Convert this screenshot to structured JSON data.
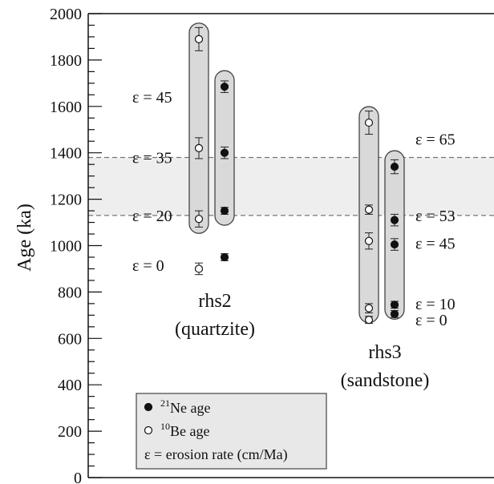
{
  "chart_data": {
    "type": "scatter",
    "ylabel": "Age (ka)",
    "ylim": [
      0,
      2000
    ],
    "yticks": [
      0,
      200,
      400,
      600,
      800,
      1000,
      1200,
      1400,
      1600,
      1800,
      2000
    ],
    "band": {
      "ymin": 1130,
      "ymax": 1380,
      "color": "#eeeeee",
      "line_color": "#777777"
    },
    "groups": [
      {
        "label_line1": "rhs2",
        "label_line2": "(quartzite)",
        "series": [
          {
            "name": "10Be",
            "points": [
              {
                "y": 900,
                "err": 25
              },
              {
                "y": 1115,
                "err": 35
              },
              {
                "y": 1420,
                "err": 45
              },
              {
                "y": 1890,
                "err": 50
              }
            ]
          },
          {
            "name": "21Ne",
            "points": [
              {
                "y": 950,
                "err": 15
              },
              {
                "y": 1150,
                "err": 15
              },
              {
                "y": 1400,
                "err": 25
              },
              {
                "y": 1685,
                "err": 25
              }
            ]
          }
        ],
        "epsilon_labels": [
          {
            "text": "ε = 45",
            "y": 1640
          },
          {
            "text": "ε = 35",
            "y": 1380
          },
          {
            "text": "ε = 20",
            "y": 1130
          },
          {
            "text": "ε = 0",
            "y": 915
          }
        ]
      },
      {
        "label_line1": "rhs3",
        "label_line2": "(sandstone)",
        "series": [
          {
            "name": "10Be",
            "points": [
              {
                "y": 680,
                "err": 15
              },
              {
                "y": 730,
                "err": 20
              },
              {
                "y": 1020,
                "err": 35
              },
              {
                "y": 1155,
                "err": 20
              },
              {
                "y": 1530,
                "err": 50
              }
            ]
          },
          {
            "name": "21Ne",
            "points": [
              {
                "y": 705,
                "err": 15
              },
              {
                "y": 745,
                "err": 15
              },
              {
                "y": 1005,
                "err": 25
              },
              {
                "y": 1110,
                "err": 25
              },
              {
                "y": 1340,
                "err": 30
              }
            ]
          }
        ],
        "epsilon_labels": [
          {
            "text": "ε = 65",
            "y": 1460
          },
          {
            "text": "ε = 53",
            "y": 1130
          },
          {
            "text": "ε = 45",
            "y": 1010
          },
          {
            "text": "ε = 10",
            "y": 750
          },
          {
            "text": "ε = 0",
            "y": 680
          }
        ]
      }
    ],
    "legend": {
      "position": "bottom-left",
      "items": [
        {
          "symbol": "filled-circle",
          "sup": "21",
          "text": "Ne age"
        },
        {
          "symbol": "open-circle",
          "sup": "10",
          "text": "Be age"
        },
        {
          "symbol": "epsilon",
          "text": "ε = erosion rate (cm/Ma)"
        }
      ]
    },
    "colors": {
      "box_fill": "#d9d9d9",
      "box_stroke": "#444444",
      "filled": "#111111",
      "open": "#ffffff"
    }
  }
}
